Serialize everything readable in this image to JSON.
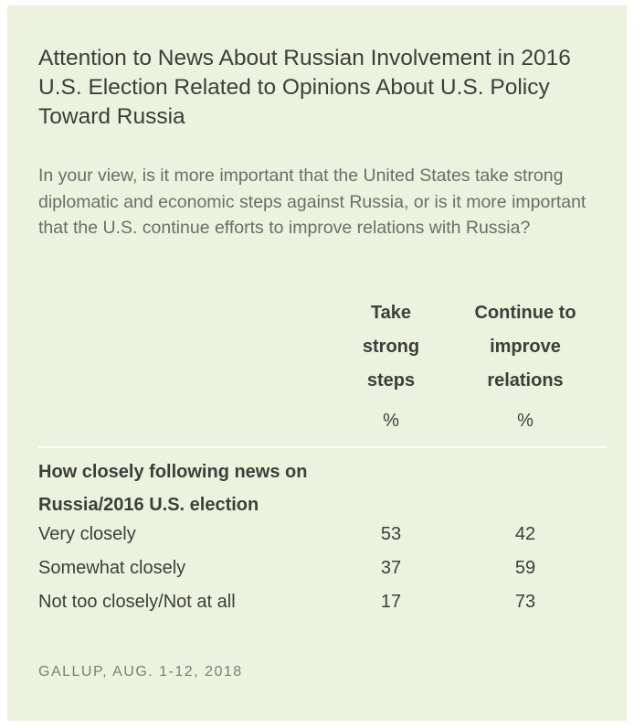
{
  "chart_data": {
    "type": "table",
    "title": "Attention to News About Russian Involvement in 2016 U.S. Election Related to Opinions About U.S. Policy Toward Russia",
    "subtitle": "In your view, is it more important that the United States take strong diplomatic and economic steps against Russia, or is it more important that the U.S. continue efforts to improve relations with Russia?",
    "columns": [
      {
        "lines": [
          "Take",
          "strong",
          "steps"
        ],
        "unit": "%"
      },
      {
        "lines": [
          "Continue to",
          "improve",
          "relations"
        ],
        "unit": "%"
      }
    ],
    "group_label": "How closely following news on Russia/2016 U.S. election",
    "rows": [
      {
        "label": "Very closely",
        "values": [
          53,
          42
        ]
      },
      {
        "label": "Somewhat closely",
        "values": [
          37,
          59
        ]
      },
      {
        "label": "Not too closely/Not at all",
        "values": [
          17,
          73
        ]
      }
    ],
    "source": "GALLUP, AUG. 1-12, 2018"
  },
  "colors": {
    "background": "#ecf2de",
    "text": "#3c3f3a"
  }
}
